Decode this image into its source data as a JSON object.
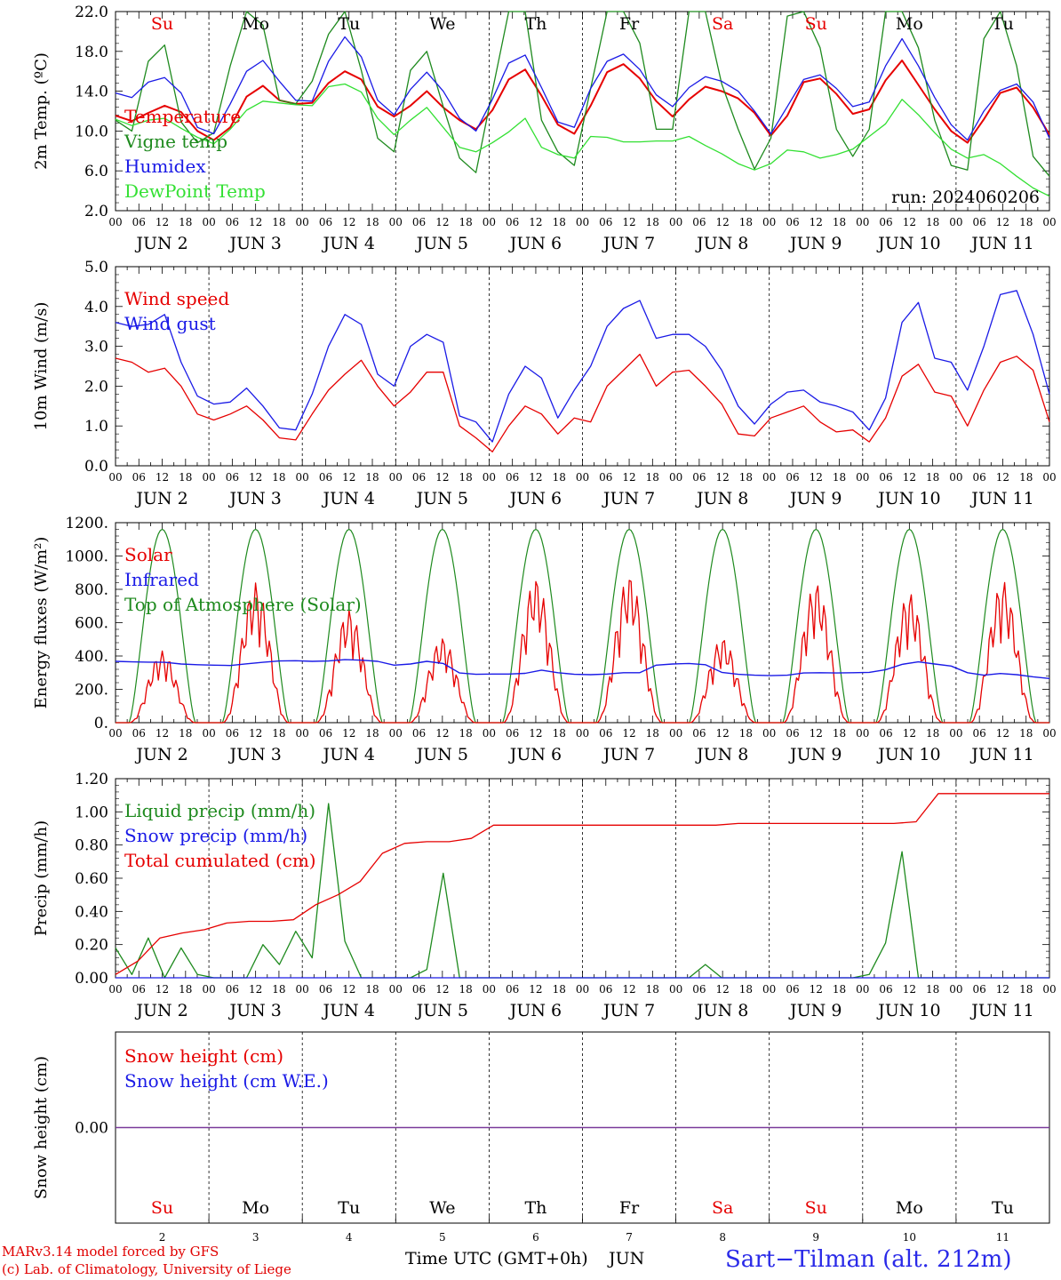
{
  "colors": {
    "red": "#e60000",
    "blue": "#1a1ae6",
    "darkgreen": "#1e8a1e",
    "lightgreen": "#33e033",
    "purple": "#7a3a9a",
    "black": "#000000"
  },
  "x_axis": {
    "hour_ticks": [
      "00",
      "06",
      "12",
      "18"
    ],
    "end_tick": "00",
    "day_labels": [
      "JUN  2",
      "JUN  3",
      "JUN  4",
      "JUN  5",
      "JUN  6",
      "JUN  7",
      "JUN  8",
      "JUN  9",
      "JUN 10",
      "JUN 11"
    ],
    "weekdays": [
      "Su",
      "Mo",
      "Tu",
      "We",
      "Th",
      "Fr",
      "Sa",
      "Su",
      "Mo",
      "Tu"
    ],
    "weekday_colors": [
      "#e60000",
      "#000000",
      "#000000",
      "#000000",
      "#000000",
      "#000000",
      "#e60000",
      "#e60000",
      "#000000",
      "#000000"
    ],
    "day_numbers": [
      "2",
      "3",
      "4",
      "5",
      "6",
      "7",
      "8",
      "9",
      "10",
      "11"
    ]
  },
  "footer": {
    "model_line": "MARv3.14 model forced by GFS",
    "lab_line": "(c) Lab. of Climatology, University of Liege",
    "time_label": "Time UTC (GMT+0h)",
    "month_label": "JUN",
    "station": "Sart−Tilman (alt. 212m)"
  },
  "chart_data": [
    {
      "type": "line",
      "ylabel": "2m Temp. (ºC)",
      "ylim": [
        2.0,
        24.0
      ],
      "yticks": [
        "2.0",
        "6.0",
        "10.0",
        "14.0",
        "18.0",
        "22.0"
      ],
      "annotation": "run: 2024060206",
      "x_start": "2024-06-02 00:00",
      "x_step_hours": 6,
      "series": [
        {
          "name": "Temperature",
          "color": "#e60000",
          "values": [
            12.5,
            11.9,
            12.8,
            13.6,
            12.9,
            10.8,
            9.8,
            11.2,
            14.6,
            15.8,
            14.2,
            13.8,
            13.9,
            16.1,
            17.4,
            16.5,
            13.5,
            12.4,
            13.6,
            15.2,
            13.4,
            12.0,
            11.0,
            13.1,
            16.5,
            17.6,
            14.7,
            11.5,
            10.5,
            13.6,
            17.3,
            18.2,
            16.6,
            14.1,
            12.4,
            14.3,
            15.7,
            15.2,
            14.4,
            12.8,
            10.3,
            12.5,
            16.2,
            16.6,
            14.9,
            12.7,
            13.2,
            16.4,
            18.6,
            15.9,
            13.2,
            10.8,
            9.5,
            12.1,
            15.0,
            15.6,
            13.4,
            10.4
          ]
        },
        {
          "name": "Vigne temp",
          "color": "#1e8a1e",
          "values": [
            12.0,
            10.8,
            18.5,
            20.3,
            11.8,
            9.5,
            10.6,
            18.0,
            26.0,
            22.5,
            14.2,
            13.8,
            16.3,
            21.5,
            28.0,
            17.5,
            10.0,
            8.5,
            17.5,
            19.6,
            13.5,
            7.8,
            6.2,
            15.2,
            27.0,
            29.0,
            12.0,
            8.5,
            7.0,
            15.5,
            25.5,
            27.0,
            20.5,
            11.0,
            11.0,
            24.0,
            25.0,
            16.0,
            11.0,
            6.6,
            10.0,
            23.5,
            28.0,
            20.0,
            11.0,
            8.0,
            11.0,
            25.0,
            27.5,
            20.0,
            12.0,
            7.0,
            6.5,
            21.0,
            26.5,
            18.0,
            8.0,
            5.8
          ]
        },
        {
          "name": "Humidex",
          "color": "#1a1ae6",
          "values": [
            15.0,
            14.5,
            16.2,
            16.7,
            15.0,
            11.2,
            10.5,
            13.8,
            17.4,
            18.6,
            16.3,
            14.2,
            14.1,
            18.5,
            21.2,
            19.0,
            14.2,
            12.6,
            15.4,
            17.3,
            15.2,
            12.2,
            10.8,
            14.3,
            18.3,
            19.2,
            15.6,
            11.8,
            11.2,
            15.5,
            18.5,
            19.3,
            17.6,
            14.8,
            13.5,
            15.6,
            16.8,
            16.3,
            15.2,
            13.0,
            10.5,
            13.5,
            16.5,
            17.0,
            15.5,
            13.5,
            14.0,
            18.0,
            21.0,
            18.0,
            14.5,
            11.5,
            9.8,
            13.0,
            15.3,
            16.0,
            14.0,
            10.0
          ]
        },
        {
          "name": "DewPoint Temp",
          "color": "#33e033",
          "values": [
            12.1,
            11.4,
            12.0,
            12.2,
            11.1,
            10.1,
            9.4,
            11.0,
            13.1,
            14.1,
            13.9,
            13.7,
            13.6,
            15.7,
            16.0,
            15.1,
            12.2,
            10.4,
            12.0,
            13.4,
            11.2,
            9.0,
            8.5,
            9.5,
            10.7,
            12.2,
            9.0,
            8.2,
            7.8,
            10.2,
            10.1,
            9.6,
            9.6,
            9.7,
            9.7,
            10.2,
            9.2,
            8.3,
            7.2,
            6.5,
            7.2,
            8.7,
            8.5,
            7.8,
            8.2,
            8.8,
            10.2,
            11.6,
            14.3,
            12.6,
            10.6,
            8.8,
            7.8,
            8.2,
            7.2,
            5.8,
            4.5,
            3.6
          ]
        }
      ]
    },
    {
      "type": "line",
      "ylabel": "10m Wind (m/s)",
      "ylim": [
        0.0,
        5.0
      ],
      "yticks": [
        "0.0",
        "1.0",
        "2.0",
        "3.0",
        "4.0",
        "5.0"
      ],
      "x_start": "2024-06-02 00:00",
      "x_step_hours": 6,
      "series": [
        {
          "name": "Wind speed",
          "color": "#e60000",
          "values": [
            2.7,
            2.6,
            2.35,
            2.45,
            2.0,
            1.3,
            1.15,
            1.3,
            1.5,
            1.15,
            0.7,
            0.65,
            1.3,
            1.9,
            2.3,
            2.65,
            2.0,
            1.5,
            1.85,
            2.35,
            2.35,
            1.0,
            0.7,
            0.35,
            1.0,
            1.5,
            1.3,
            0.8,
            1.2,
            1.1,
            2.0,
            2.4,
            2.8,
            2.0,
            2.35,
            2.4,
            2.0,
            1.55,
            0.8,
            0.75,
            1.2,
            1.35,
            1.5,
            1.1,
            0.85,
            0.9,
            0.6,
            1.2,
            2.25,
            2.55,
            1.85,
            1.75,
            1.0,
            1.9,
            2.6,
            2.75,
            2.4,
            1.1
          ]
        },
        {
          "name": "Wind gust",
          "color": "#1a1ae6",
          "values": [
            3.6,
            3.5,
            3.55,
            3.8,
            2.6,
            1.75,
            1.55,
            1.6,
            1.95,
            1.5,
            0.95,
            0.9,
            1.8,
            3.0,
            3.8,
            3.55,
            2.3,
            2.0,
            3.0,
            3.3,
            3.1,
            1.25,
            1.1,
            0.6,
            1.8,
            2.5,
            2.2,
            1.2,
            1.9,
            2.5,
            3.5,
            3.95,
            4.15,
            3.2,
            3.3,
            3.3,
            3.0,
            2.4,
            1.5,
            1.05,
            1.55,
            1.85,
            1.9,
            1.6,
            1.5,
            1.35,
            0.9,
            1.7,
            3.6,
            4.1,
            2.7,
            2.6,
            1.9,
            3.0,
            4.3,
            4.4,
            3.3,
            1.8
          ]
        }
      ]
    },
    {
      "type": "line",
      "ylabel": "Energy fluxes (W/m²)",
      "ylim": [
        0,
        1200
      ],
      "yticks": [
        "0.",
        "200.",
        "400.",
        "600.",
        "800.",
        "1000.",
        "1200."
      ],
      "x_start": "2024-06-02 00:00",
      "x_step_hours": 6,
      "toa_peak": 1160,
      "toa_daylight_hours": [
        3.5,
        20.5
      ],
      "series": [
        {
          "name": "Solar",
          "color": "#e60000",
          "daily_peak": [
            430,
            840,
            680,
            510,
            870,
            890,
            510,
            840,
            780,
            850
          ]
        },
        {
          "name": "Infrared",
          "color": "#1a1ae6",
          "values": [
            368,
            365,
            363,
            362,
            352,
            348,
            345,
            343,
            353,
            362,
            370,
            372,
            368,
            370,
            378,
            375,
            368,
            345,
            352,
            368,
            355,
            298,
            290,
            292,
            292,
            296,
            315,
            300,
            290,
            288,
            292,
            300,
            300,
            345,
            352,
            355,
            348,
            302,
            290,
            285,
            282,
            285,
            298,
            300,
            298,
            300,
            302,
            318,
            350,
            365,
            352,
            340,
            300,
            285,
            295,
            288,
            275,
            265
          ]
        },
        {
          "name": "Top of Atmosphere (Solar)",
          "color": "#1e8a1e",
          "daily_peak": [
            1160,
            1160,
            1160,
            1160,
            1160,
            1160,
            1160,
            1160,
            1160,
            1160
          ]
        }
      ]
    },
    {
      "type": "line",
      "ylabel": "Precip (mm/h)",
      "ylim": [
        0.0,
        1.2
      ],
      "yticks": [
        "0.00",
        "0.20",
        "0.40",
        "0.60",
        "0.80",
        "1.00",
        "1.20"
      ],
      "x_start": "2024-06-02 00:00",
      "x_step_hours": 6,
      "series": [
        {
          "name": "Liquid precip (mm/h)",
          "color": "#1e8a1e",
          "values": [
            0.18,
            0.02,
            0.24,
            0.0,
            0.18,
            0.02,
            0.0,
            0.0,
            0.0,
            0.2,
            0.08,
            0.28,
            0.12,
            1.05,
            0.22,
            0.0,
            0.0,
            0.0,
            0.0,
            0.05,
            0.63,
            0.0,
            0.0,
            0.0,
            0.0,
            0.0,
            0.0,
            0.0,
            0.0,
            0.0,
            0.0,
            0.0,
            0.0,
            0.0,
            0.0,
            0.0,
            0.08,
            0.0,
            0.0,
            0.0,
            0.0,
            0.0,
            0.0,
            0.0,
            0.0,
            0.0,
            0.02,
            0.21,
            0.76,
            0.0,
            0.0,
            0.0,
            0.0,
            0.0,
            0.0,
            0.0,
            0.0,
            0.0
          ]
        },
        {
          "name": "Snow precip (mm/h)",
          "color": "#1a1ae6",
          "values": [
            0.0,
            0.0,
            0.0,
            0.0,
            0.0,
            0.0,
            0.0,
            0.0,
            0.0,
            0.0
          ]
        },
        {
          "name": "Total cumulated (cm)",
          "color": "#e60000",
          "values": [
            0.02,
            0.1,
            0.24,
            0.27,
            0.29,
            0.33,
            0.34,
            0.34,
            0.35,
            0.44,
            0.5,
            0.58,
            0.75,
            0.81,
            0.82,
            0.82,
            0.84,
            0.92,
            0.92,
            0.92,
            0.92,
            0.92,
            0.92,
            0.92,
            0.92,
            0.92,
            0.92,
            0.92,
            0.93,
            0.93,
            0.93,
            0.93,
            0.93,
            0.93,
            0.93,
            0.93,
            0.94,
            1.11,
            1.11,
            1.11,
            1.11,
            1.11,
            1.11
          ]
        }
      ]
    },
    {
      "type": "line",
      "ylabel": "Snow height (cm)",
      "yticks": [
        "0.00"
      ],
      "series": [
        {
          "name": "Snow height (cm)",
          "color": "#e60000",
          "values": [
            0.0,
            0.0,
            0.0,
            0.0,
            0.0,
            0.0,
            0.0,
            0.0,
            0.0,
            0.0
          ]
        },
        {
          "name": "Snow height (cm W.E.)",
          "color": "#1a1ae6",
          "values": [
            0.0,
            0.0,
            0.0,
            0.0,
            0.0,
            0.0,
            0.0,
            0.0,
            0.0,
            0.0
          ]
        }
      ]
    }
  ]
}
